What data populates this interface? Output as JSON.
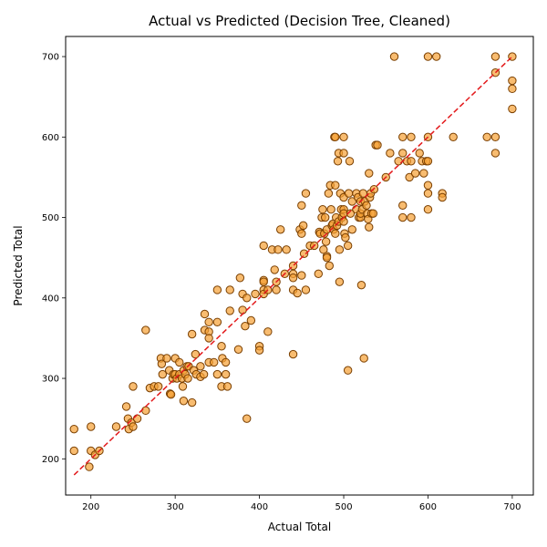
{
  "chart_data": {
    "type": "scatter",
    "title": "Actual vs Predicted (Decision Tree, Cleaned)",
    "xlabel": "Actual Total",
    "ylabel": "Predicted Total",
    "xlim": [
      170,
      725
    ],
    "ylim": [
      155,
      725
    ],
    "xticks": [
      200,
      300,
      400,
      500,
      600,
      700
    ],
    "yticks": [
      200,
      300,
      400,
      500,
      600,
      700
    ],
    "grid": false,
    "colors": {
      "fill": "#f5a033",
      "edge": "#7a3f00",
      "reference_line": "#e31a1c"
    },
    "reference_line": {
      "style": "dashed",
      "from": [
        180,
        180
      ],
      "to": [
        700,
        700
      ]
    },
    "points": [
      [
        180,
        237
      ],
      [
        180,
        210
      ],
      [
        198,
        190
      ],
      [
        200,
        240
      ],
      [
        200,
        210
      ],
      [
        205,
        205
      ],
      [
        210,
        210
      ],
      [
        230,
        240
      ],
      [
        242,
        265
      ],
      [
        244,
        250
      ],
      [
        245,
        237
      ],
      [
        248,
        245
      ],
      [
        250,
        240
      ],
      [
        250,
        290
      ],
      [
        255,
        250
      ],
      [
        265,
        360
      ],
      [
        265,
        260
      ],
      [
        270,
        288
      ],
      [
        275,
        290
      ],
      [
        280,
        290
      ],
      [
        283,
        325
      ],
      [
        284,
        318
      ],
      [
        285,
        305
      ],
      [
        290,
        325
      ],
      [
        293,
        310
      ],
      [
        294,
        281
      ],
      [
        295,
        280
      ],
      [
        297,
        300
      ],
      [
        298,
        305
      ],
      [
        300,
        305
      ],
      [
        300,
        325
      ],
      [
        302,
        300
      ],
      [
        305,
        320
      ],
      [
        305,
        305
      ],
      [
        308,
        300
      ],
      [
        309,
        290
      ],
      [
        310,
        272
      ],
      [
        310,
        310
      ],
      [
        312,
        305
      ],
      [
        314,
        315
      ],
      [
        315,
        300
      ],
      [
        316,
        315
      ],
      [
        320,
        270
      ],
      [
        320,
        355
      ],
      [
        322,
        310
      ],
      [
        324,
        330
      ],
      [
        325,
        305
      ],
      [
        330,
        302
      ],
      [
        330,
        315
      ],
      [
        334,
        305
      ],
      [
        335,
        380
      ],
      [
        335,
        360
      ],
      [
        340,
        358
      ],
      [
        340,
        350
      ],
      [
        340,
        370
      ],
      [
        340,
        320
      ],
      [
        346,
        320
      ],
      [
        350,
        305
      ],
      [
        350,
        410
      ],
      [
        350,
        370
      ],
      [
        355,
        340
      ],
      [
        355,
        290
      ],
      [
        356,
        325
      ],
      [
        360,
        320
      ],
      [
        360,
        305
      ],
      [
        362,
        290
      ],
      [
        365,
        410
      ],
      [
        365,
        384
      ],
      [
        375,
        336
      ],
      [
        377,
        425
      ],
      [
        380,
        385
      ],
      [
        380,
        405
      ],
      [
        383,
        365
      ],
      [
        385,
        400
      ],
      [
        385,
        250
      ],
      [
        390,
        372
      ],
      [
        395,
        405
      ],
      [
        400,
        340
      ],
      [
        400,
        335
      ],
      [
        405,
        465
      ],
      [
        405,
        422
      ],
      [
        405,
        420
      ],
      [
        405,
        410
      ],
      [
        405,
        405
      ],
      [
        410,
        410
      ],
      [
        410,
        358
      ],
      [
        415,
        460
      ],
      [
        418,
        435
      ],
      [
        420,
        420
      ],
      [
        420,
        410
      ],
      [
        422,
        460
      ],
      [
        425,
        485
      ],
      [
        430,
        430
      ],
      [
        432,
        460
      ],
      [
        440,
        330
      ],
      [
        440,
        440
      ],
      [
        440,
        430
      ],
      [
        440,
        425
      ],
      [
        440,
        410
      ],
      [
        445,
        406
      ],
      [
        448,
        485
      ],
      [
        450,
        515
      ],
      [
        450,
        480
      ],
      [
        450,
        428
      ],
      [
        452,
        490
      ],
      [
        453,
        455
      ],
      [
        455,
        530
      ],
      [
        455,
        410
      ],
      [
        460,
        465
      ],
      [
        465,
        465
      ],
      [
        470,
        430
      ],
      [
        471,
        482
      ],
      [
        472,
        480
      ],
      [
        474,
        500
      ],
      [
        475,
        510
      ],
      [
        476,
        460
      ],
      [
        477,
        480
      ],
      [
        478,
        500
      ],
      [
        479,
        470
      ],
      [
        480,
        452
      ],
      [
        480,
        485
      ],
      [
        480,
        450
      ],
      [
        482,
        530
      ],
      [
        483,
        440
      ],
      [
        484,
        540
      ],
      [
        485,
        510
      ],
      [
        486,
        490
      ],
      [
        487,
        492
      ],
      [
        488,
        485
      ],
      [
        489,
        600
      ],
      [
        490,
        480
      ],
      [
        490,
        600
      ],
      [
        490,
        540
      ],
      [
        491,
        500
      ],
      [
        492,
        490
      ],
      [
        493,
        570
      ],
      [
        494,
        580
      ],
      [
        494,
        495
      ],
      [
        495,
        460
      ],
      [
        495,
        420
      ],
      [
        496,
        530
      ],
      [
        497,
        510
      ],
      [
        498,
        500
      ],
      [
        500,
        600
      ],
      [
        500,
        580
      ],
      [
        500,
        525
      ],
      [
        500,
        510
      ],
      [
        500,
        505
      ],
      [
        500,
        495
      ],
      [
        501,
        480
      ],
      [
        502,
        475
      ],
      [
        505,
        310
      ],
      [
        505,
        465
      ],
      [
        506,
        530
      ],
      [
        507,
        570
      ],
      [
        508,
        505
      ],
      [
        510,
        520
      ],
      [
        510,
        485
      ],
      [
        515,
        510
      ],
      [
        515,
        530
      ],
      [
        517,
        525
      ],
      [
        518,
        500
      ],
      [
        520,
        520
      ],
      [
        520,
        500
      ],
      [
        520,
        505
      ],
      [
        521,
        416
      ],
      [
        522,
        510
      ],
      [
        523,
        530
      ],
      [
        524,
        325
      ],
      [
        525,
        520
      ],
      [
        527,
        515
      ],
      [
        528,
        505
      ],
      [
        529,
        498
      ],
      [
        530,
        555
      ],
      [
        530,
        488
      ],
      [
        531,
        525
      ],
      [
        532,
        530
      ],
      [
        533,
        505
      ],
      [
        535,
        505
      ],
      [
        536,
        535
      ],
      [
        538,
        590
      ],
      [
        540,
        590
      ],
      [
        550,
        550
      ],
      [
        555,
        580
      ],
      [
        560,
        700
      ],
      [
        565,
        570
      ],
      [
        570,
        600
      ],
      [
        570,
        580
      ],
      [
        570,
        515
      ],
      [
        570,
        500
      ],
      [
        575,
        570
      ],
      [
        578,
        550
      ],
      [
        580,
        600
      ],
      [
        580,
        570
      ],
      [
        580,
        500
      ],
      [
        585,
        555
      ],
      [
        590,
        580
      ],
      [
        593,
        570
      ],
      [
        595,
        555
      ],
      [
        598,
        570
      ],
      [
        600,
        700
      ],
      [
        600,
        600
      ],
      [
        600,
        570
      ],
      [
        600,
        540
      ],
      [
        600,
        530
      ],
      [
        600,
        510
      ],
      [
        610,
        700
      ],
      [
        617,
        530
      ],
      [
        617,
        525
      ],
      [
        630,
        600
      ],
      [
        670,
        600
      ],
      [
        680,
        700
      ],
      [
        680,
        680
      ],
      [
        680,
        600
      ],
      [
        680,
        580
      ],
      [
        700,
        700
      ],
      [
        700,
        670
      ],
      [
        700,
        660
      ],
      [
        700,
        635
      ]
    ]
  }
}
